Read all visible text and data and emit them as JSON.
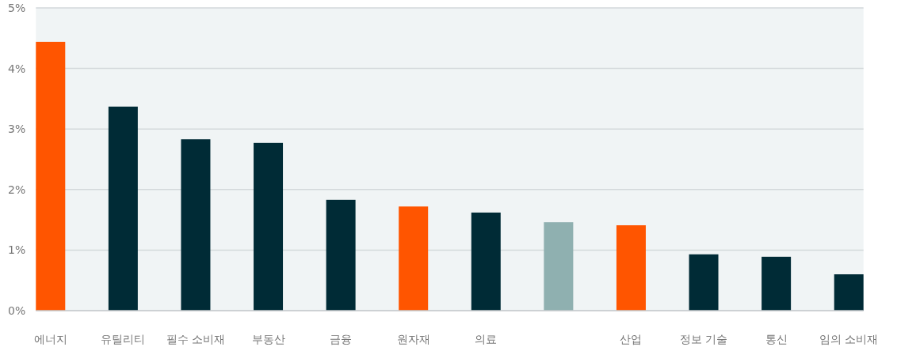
{
  "chart_data": {
    "type": "bar",
    "categories": [
      "에너지",
      "유틸리티",
      "필수 소비재",
      "부동산",
      "금융",
      "원자재",
      "의료",
      null,
      "산업",
      "정보 기술",
      "통신",
      "임의 소비재"
    ],
    "values": [
      4.44,
      3.37,
      2.83,
      2.77,
      1.83,
      1.72,
      1.62,
      1.46,
      1.41,
      0.93,
      0.89,
      0.6
    ],
    "colors": [
      "#ff5500",
      "#002b36",
      "#002b36",
      "#002b36",
      "#002b36",
      "#ff5500",
      "#002b36",
      "#8fb0b0",
      "#ff5500",
      "#002b36",
      "#002b36",
      "#002b36"
    ],
    "ylim": [
      0,
      5
    ],
    "yticks": [
      {
        "value": 0,
        "label": "0%"
      },
      {
        "value": 1,
        "label": "1%"
      },
      {
        "value": 2,
        "label": "2%"
      },
      {
        "value": 3,
        "label": "3%"
      },
      {
        "value": 4,
        "label": "4%"
      },
      {
        "value": 5,
        "label": "5%"
      }
    ],
    "grid": "y"
  }
}
